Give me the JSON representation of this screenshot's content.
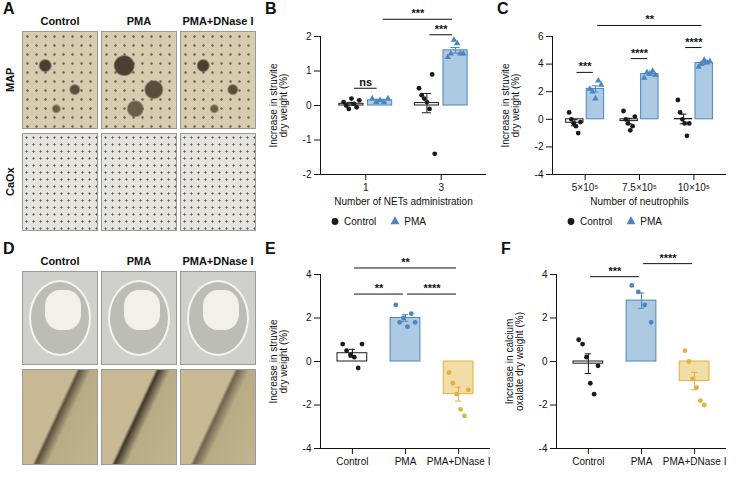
{
  "image_panels": [
    {
      "panel": "A",
      "columns": [
        "Control",
        "PMA",
        "PMA+DNase I"
      ],
      "rows": [
        "MAP",
        "CaOx"
      ]
    },
    {
      "panel": "D",
      "columns": [
        "Control",
        "PMA",
        "PMA+DNase I"
      ]
    }
  ],
  "chart_data": [
    {
      "panel": "B",
      "type": "bar",
      "x_label": "Number of NETs administration",
      "y_label": "Increase in struvite dry weight (%)",
      "categories": [
        "1",
        "3"
      ],
      "series": [
        {
          "name": "Control",
          "color": "#1a1a1a",
          "marker": "circle",
          "values": [
            0.05,
            0.07
          ],
          "errors": [
            0.04,
            0.28
          ],
          "points": [
            [
              0.1,
              0.0,
              -0.1,
              0.2,
              0.05,
              -0.05,
              0.15
            ],
            [
              0.5,
              0.3,
              0.2,
              0.1,
              -0.1,
              0.9,
              -1.4
            ]
          ]
        },
        {
          "name": "PMA",
          "color": "#4a86bf",
          "marker": "triangle",
          "values": [
            0.15,
            1.6
          ],
          "errors": [
            0.03,
            0.08
          ],
          "points": [
            [
              0.2,
              0.1,
              0.15,
              0.1,
              0.2
            ],
            [
              1.4,
              1.5,
              1.9,
              1.8,
              1.5,
              1.5
            ]
          ]
        }
      ],
      "ylim": [
        -2,
        2
      ],
      "yticks": [
        -2,
        -1,
        0,
        1,
        2
      ],
      "legend": "bottom",
      "annotations": [
        {
          "text": "ns",
          "from": [
            "1",
            "Control"
          ],
          "to": [
            "1",
            "PMA"
          ],
          "y": 0.5
        },
        {
          "text": "***",
          "from": [
            "3",
            "Control"
          ],
          "to": [
            "3",
            "PMA"
          ],
          "y": 2.05
        },
        {
          "text": "***",
          "from": [
            "1",
            "PMA"
          ],
          "to": [
            "3",
            "PMA"
          ],
          "y": 2.5
        }
      ]
    },
    {
      "panel": "C",
      "type": "bar",
      "x_label": "Number of neutrophils",
      "y_label": "Increase in struvite dry weight (%)",
      "categories": [
        "5×10⁵",
        "7.5×10⁵",
        "10×10⁵"
      ],
      "series": [
        {
          "name": "Control",
          "color": "#1a1a1a",
          "marker": "circle",
          "values": [
            -0.25,
            -0.13,
            0.02
          ],
          "errors": [
            0.22,
            0.2,
            0.35
          ],
          "points": [
            [
              0.5,
              0.0,
              -0.3,
              -0.5,
              -1.0,
              -0.2
            ],
            [
              0.6,
              0.0,
              -0.3,
              -0.8,
              -0.5,
              0.2
            ],
            [
              1.4,
              0.5,
              0.0,
              -0.3,
              -1.2,
              -0.3
            ]
          ]
        },
        {
          "name": "PMA",
          "color": "#4a86bf",
          "marker": "triangle",
          "values": [
            2.2,
            3.28,
            4.08
          ],
          "errors": [
            0.22,
            0.09,
            0.09
          ],
          "points": [
            [
              2.2,
              2.0,
              1.5,
              2.8,
              2.5
            ],
            [
              3.0,
              3.4,
              3.3,
              3.5,
              3.2
            ],
            [
              3.8,
              4.0,
              4.3,
              4.1,
              4.2
            ]
          ]
        }
      ],
      "ylim": [
        -4,
        6
      ],
      "yticks": [
        -4,
        -2,
        0,
        2,
        4,
        6
      ],
      "legend": "bottom",
      "annotations": [
        {
          "text": "***",
          "from": [
            "5×10⁵",
            "Control"
          ],
          "to": [
            "5×10⁵",
            "PMA"
          ],
          "y": 3.4
        },
        {
          "text": "****",
          "from": [
            "7.5×10⁵",
            "Control"
          ],
          "to": [
            "7.5×10⁵",
            "PMA"
          ],
          "y": 4.4
        },
        {
          "text": "****",
          "from": [
            "10×10⁵",
            "Control"
          ],
          "to": [
            "10×10⁵",
            "PMA"
          ],
          "y": 5.2
        },
        {
          "text": "**",
          "from": [
            "5×10⁵",
            "PMA"
          ],
          "to": [
            "10×10⁵",
            "PMA"
          ],
          "y": 6.8
        }
      ]
    },
    {
      "panel": "E",
      "type": "bar",
      "y_label": "Increase in struvite dry weight (%)",
      "categories": [
        "Control",
        "PMA",
        "PMA+DNase I"
      ],
      "values": [
        0.38,
        2.0,
        -1.5
      ],
      "errors": [
        0.18,
        0.15,
        0.32
      ],
      "colors": [
        "#1a1a1a",
        "#4a86bf",
        "#e2b13c"
      ],
      "marker": "circle",
      "points": [
        [
          0.8,
          0.5,
          0.3,
          0.2,
          -0.3,
          0.8
        ],
        [
          2.6,
          1.8,
          2.0,
          1.6,
          2.2,
          1.8
        ],
        [
          -0.5,
          -1.0,
          -1.5,
          -2.2,
          -2.5,
          -1.3
        ]
      ],
      "ylim": [
        -4,
        4
      ],
      "yticks": [
        -4,
        -2,
        0,
        2,
        4
      ],
      "annotations": [
        {
          "text": "**",
          "from": "Control",
          "to": "PMA",
          "y": 3.1
        },
        {
          "text": "****",
          "from": "PMA",
          "to": "PMA+DNase I",
          "y": 3.1
        },
        {
          "text": "**",
          "from": "Control",
          "to": "PMA+DNase I",
          "y": 4.3
        }
      ]
    },
    {
      "panel": "F",
      "type": "bar",
      "y_label": "Increase in calcium oxalate dry weight (%)",
      "categories": [
        "Control",
        "PMA",
        "PMA+DNase I"
      ],
      "values": [
        -0.1,
        2.8,
        -0.9
      ],
      "errors": [
        0.45,
        0.35,
        0.4
      ],
      "colors": [
        "#1a1a1a",
        "#4a86bf",
        "#e2b13c"
      ],
      "marker": "circle",
      "points": [
        [
          1.0,
          0.8,
          0.2,
          -1.0,
          -1.5,
          -0.2
        ],
        [
          3.5,
          3.2,
          2.6,
          1.8
        ],
        [
          0.5,
          0.0,
          -0.8,
          -1.2,
          -1.8,
          -2.0
        ]
      ],
      "ylim": [
        -4,
        4
      ],
      "yticks": [
        -4,
        -2,
        0,
        2,
        4
      ],
      "annotations": [
        {
          "text": "***",
          "from": "Control",
          "to": "PMA",
          "y": 3.9
        },
        {
          "text": "****",
          "from": "PMA",
          "to": "PMA+DNase I",
          "y": 4.5
        }
      ]
    }
  ]
}
